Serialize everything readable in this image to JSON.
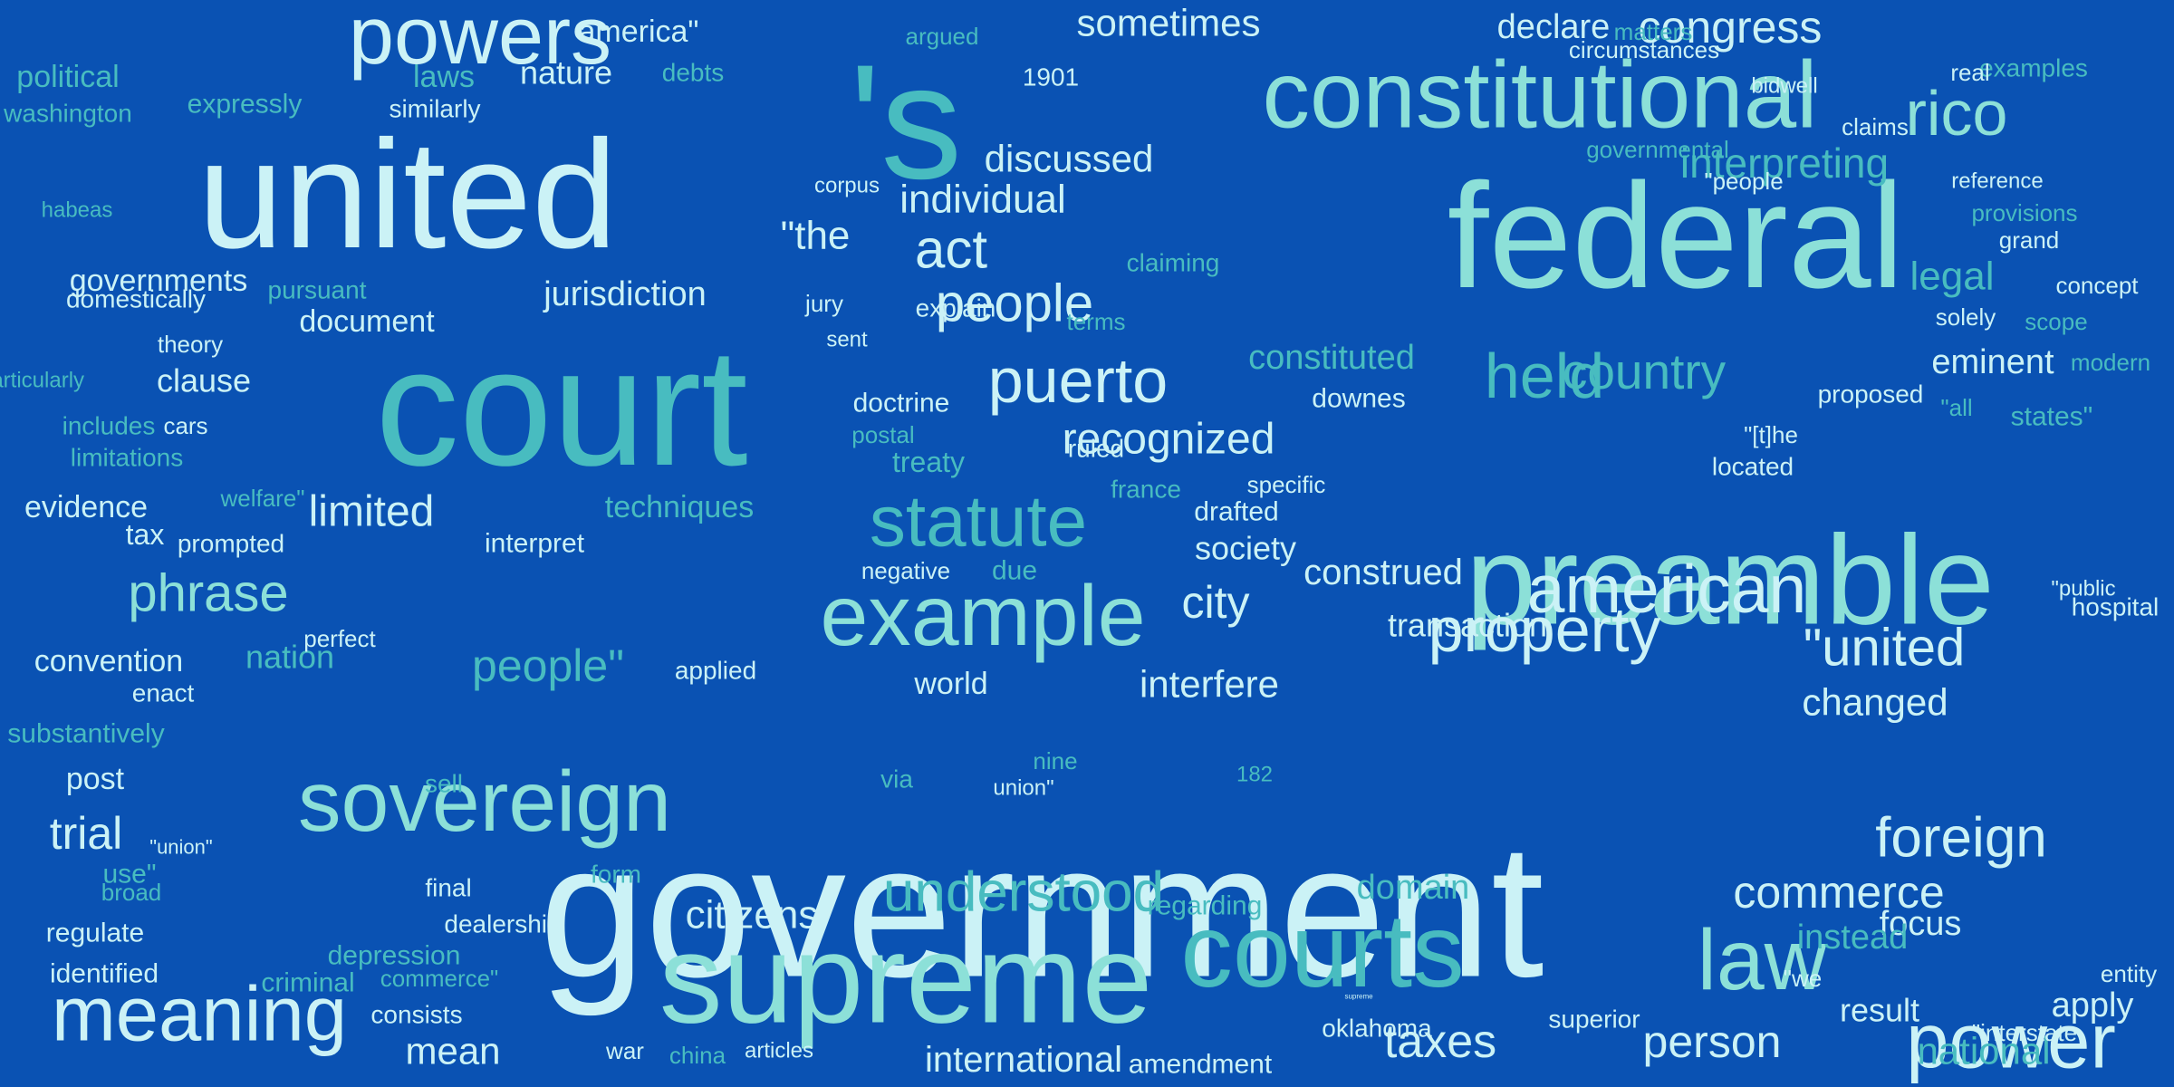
{
  "palette": {
    "background": "#0a52b3",
    "white": "#ffffff",
    "pale": "#cbf2f6",
    "aqua": "#8ce0d8",
    "teal": "#48bcc0",
    "sky": "#7fcfea",
    "faint": "#4fa7d6"
  },
  "words": [
    {
      "text": "government",
      "size": 210,
      "color": "pale"
    },
    {
      "text": "court",
      "size": 185,
      "color": "teal"
    },
    {
      "text": "united",
      "size": 170,
      "color": "pale"
    },
    {
      "text": "federal",
      "size": 165,
      "color": "aqua"
    },
    {
      "text": "'s",
      "size": 180,
      "color": "teal"
    },
    {
      "text": "preamble",
      "size": 140,
      "color": "aqua"
    },
    {
      "text": "supreme",
      "size": 140,
      "color": "aqua"
    },
    {
      "text": "courts",
      "size": 115,
      "color": "teal"
    },
    {
      "text": "constitutional",
      "size": 105,
      "color": "aqua"
    },
    {
      "text": "sovereign",
      "size": 95,
      "color": "aqua"
    },
    {
      "text": "example",
      "size": 95,
      "color": "aqua"
    },
    {
      "text": "powers",
      "size": 90,
      "color": "pale"
    },
    {
      "text": "meaning",
      "size": 85,
      "color": "pale"
    },
    {
      "text": "power",
      "size": 85,
      "color": "pale"
    },
    {
      "text": "law",
      "size": 95,
      "color": "aqua"
    },
    {
      "text": "statute",
      "size": 80,
      "color": "teal"
    },
    {
      "text": "american",
      "size": 75,
      "color": "pale"
    },
    {
      "text": "rico",
      "size": 70,
      "color": "aqua"
    },
    {
      "text": "puerto",
      "size": 70,
      "color": "pale"
    },
    {
      "text": "held",
      "size": 70,
      "color": "teal"
    },
    {
      "text": "property",
      "size": 70,
      "color": "pale"
    },
    {
      "text": "understood",
      "size": 62,
      "color": "teal"
    },
    {
      "text": "foreign",
      "size": 62,
      "color": "pale"
    },
    {
      "text": "people",
      "size": 58,
      "color": "pale"
    },
    {
      "text": "act",
      "size": 60,
      "color": "pale"
    },
    {
      "text": "\"united",
      "size": 58,
      "color": "pale"
    },
    {
      "text": "phrase",
      "size": 58,
      "color": "aqua"
    },
    {
      "text": "commerce",
      "size": 50,
      "color": "pale"
    },
    {
      "text": "country",
      "size": 55,
      "color": "teal"
    },
    {
      "text": "congress",
      "size": 50,
      "color": "pale"
    },
    {
      "text": "taxes",
      "size": 52,
      "color": "pale"
    },
    {
      "text": "person",
      "size": 50,
      "color": "pale"
    },
    {
      "text": "limited",
      "size": 48,
      "color": "pale"
    },
    {
      "text": "people\"",
      "size": 50,
      "color": "teal"
    },
    {
      "text": "trial",
      "size": 50,
      "color": "pale"
    },
    {
      "text": "recognized",
      "size": 48,
      "color": "pale"
    },
    {
      "text": "city",
      "size": 50,
      "color": "pale"
    },
    {
      "text": "citizens",
      "size": 44,
      "color": "pale"
    },
    {
      "text": "interfere",
      "size": 42,
      "color": "pale"
    },
    {
      "text": "construed",
      "size": 40,
      "color": "pale"
    },
    {
      "text": "interpreting",
      "size": 46,
      "color": "teal"
    },
    {
      "text": "individual",
      "size": 44,
      "color": "pale"
    },
    {
      "text": "discussed",
      "size": 42,
      "color": "pale"
    },
    {
      "text": "\"the",
      "size": 44,
      "color": "pale"
    },
    {
      "text": "sometimes",
      "size": 42,
      "color": "pale"
    },
    {
      "text": "declare",
      "size": 38,
      "color": "pale"
    },
    {
      "text": "international",
      "size": 40,
      "color": "pale"
    },
    {
      "text": "national",
      "size": 42,
      "color": "teal"
    },
    {
      "text": "changed",
      "size": 42,
      "color": "pale"
    },
    {
      "text": "legal",
      "size": 44,
      "color": "teal"
    },
    {
      "text": "eminent",
      "size": 38,
      "color": "pale"
    },
    {
      "text": "mean",
      "size": 42,
      "color": "pale"
    },
    {
      "text": "supreme",
      "size": 8,
      "color": "pale"
    },
    {
      "text": "jurisdiction",
      "size": 38,
      "color": "pale"
    },
    {
      "text": "constituted",
      "size": 38,
      "color": "teal"
    },
    {
      "text": "domain",
      "size": 38,
      "color": "teal"
    },
    {
      "text": "transaction",
      "size": 36,
      "color": "pale"
    },
    {
      "text": "society",
      "size": 36,
      "color": "pale"
    },
    {
      "text": "focus",
      "size": 38,
      "color": "pale"
    },
    {
      "text": "instead",
      "size": 38,
      "color": "teal"
    },
    {
      "text": "apply",
      "size": 38,
      "color": "pale"
    },
    {
      "text": "result",
      "size": 36,
      "color": "pale"
    },
    {
      "text": "nature",
      "size": 36,
      "color": "pale"
    },
    {
      "text": "evidence",
      "size": 34,
      "color": "pale"
    },
    {
      "text": "convention",
      "size": 34,
      "color": "pale"
    },
    {
      "text": "clause",
      "size": 36,
      "color": "pale"
    },
    {
      "text": "america\"",
      "size": 34,
      "color": "pale"
    },
    {
      "text": "document",
      "size": 34,
      "color": "pale"
    },
    {
      "text": "governments",
      "size": 34,
      "color": "pale"
    },
    {
      "text": "political",
      "size": 34,
      "color": "teal"
    },
    {
      "text": "substantively",
      "size": 30,
      "color": "teal"
    },
    {
      "text": "post",
      "size": 34,
      "color": "pale"
    },
    {
      "text": "identified",
      "size": 30,
      "color": "pale"
    },
    {
      "text": "regulate",
      "size": 30,
      "color": "pale"
    },
    {
      "text": "criminal",
      "size": 30,
      "color": "teal"
    },
    {
      "text": "dealership",
      "size": 28,
      "color": "pale"
    },
    {
      "text": "depression",
      "size": 30,
      "color": "teal"
    },
    {
      "text": "consists",
      "size": 28,
      "color": "pale"
    },
    {
      "text": "regarding",
      "size": 30,
      "color": "teal"
    },
    {
      "text": "amendment",
      "size": 30,
      "color": "pale"
    },
    {
      "text": "oklahoma",
      "size": 28,
      "color": "pale"
    },
    {
      "text": "superior",
      "size": 28,
      "color": "pale"
    },
    {
      "text": "doctrine",
      "size": 30,
      "color": "pale"
    },
    {
      "text": "treaty",
      "size": 32,
      "color": "teal"
    },
    {
      "text": "ruled",
      "size": 28,
      "color": "pale"
    },
    {
      "text": "techniques",
      "size": 34,
      "color": "teal"
    },
    {
      "text": "interpret",
      "size": 30,
      "color": "pale"
    },
    {
      "text": "applied",
      "size": 28,
      "color": "pale"
    },
    {
      "text": "world",
      "size": 34,
      "color": "pale"
    },
    {
      "text": "drafted",
      "size": 30,
      "color": "pale"
    },
    {
      "text": "france",
      "size": 28,
      "color": "teal"
    },
    {
      "text": "due",
      "size": 30,
      "color": "teal"
    },
    {
      "text": "negative",
      "size": 26,
      "color": "pale"
    },
    {
      "text": "tax",
      "size": 32,
      "color": "pale"
    },
    {
      "text": "prompted",
      "size": 28,
      "color": "pale"
    },
    {
      "text": "welfare\"",
      "size": 26,
      "color": "teal"
    },
    {
      "text": "nation",
      "size": 36,
      "color": "teal"
    },
    {
      "text": "perfect",
      "size": 26,
      "color": "pale"
    },
    {
      "text": "includes",
      "size": 28,
      "color": "teal"
    },
    {
      "text": "enact",
      "size": 28,
      "color": "pale"
    },
    {
      "text": "nine",
      "size": 26,
      "color": "teal"
    },
    {
      "text": "limitations",
      "size": 28,
      "color": "teal"
    },
    {
      "text": "cars",
      "size": 26,
      "color": "pale"
    },
    {
      "text": "theory",
      "size": 26,
      "color": "pale"
    },
    {
      "text": "domestically",
      "size": 28,
      "color": "pale"
    },
    {
      "text": "pursuant",
      "size": 28,
      "color": "teal"
    },
    {
      "text": "expressly",
      "size": 30,
      "color": "teal"
    },
    {
      "text": "washington",
      "size": 28,
      "color": "teal"
    },
    {
      "text": "similarly",
      "size": 28,
      "color": "pale"
    },
    {
      "text": "laws",
      "size": 34,
      "color": "teal"
    },
    {
      "text": "debts",
      "size": 28,
      "color": "teal"
    },
    {
      "text": "argued",
      "size": 26,
      "color": "teal"
    },
    {
      "text": "1901",
      "size": 28,
      "color": "pale"
    },
    {
      "text": "claiming",
      "size": 28,
      "color": "teal"
    },
    {
      "text": "explain",
      "size": 28,
      "color": "pale"
    },
    {
      "text": "downes",
      "size": 30,
      "color": "pale"
    },
    {
      "text": "located",
      "size": 28,
      "color": "pale"
    },
    {
      "text": "\"[t]he",
      "size": 26,
      "color": "pale"
    },
    {
      "text": "proposed",
      "size": 28,
      "color": "pale"
    },
    {
      "text": "\"all",
      "size": 26,
      "color": "teal"
    },
    {
      "text": "states\"",
      "size": 30,
      "color": "teal"
    },
    {
      "text": "hospital",
      "size": 28,
      "color": "pale"
    },
    {
      "text": "modern",
      "size": 26,
      "color": "teal"
    },
    {
      "text": "\"public",
      "size": 24,
      "color": "pale"
    },
    {
      "text": "entity",
      "size": 26,
      "color": "pale"
    },
    {
      "text": "\"interstate",
      "size": 26,
      "color": "pale"
    },
    {
      "text": "\"we",
      "size": 26,
      "color": "pale"
    },
    {
      "text": "articles",
      "size": 24,
      "color": "pale"
    },
    {
      "text": "china",
      "size": 26,
      "color": "teal"
    },
    {
      "text": "war",
      "size": 26,
      "color": "pale"
    },
    {
      "text": "commerce\"",
      "size": 26,
      "color": "teal"
    },
    {
      "text": "broad",
      "size": 26,
      "color": "teal"
    },
    {
      "text": "\"union\"",
      "size": 22,
      "color": "pale"
    },
    {
      "text": "use\"",
      "size": 30,
      "color": "teal"
    },
    {
      "text": "form",
      "size": 28,
      "color": "teal"
    },
    {
      "text": "final",
      "size": 28,
      "color": "pale"
    },
    {
      "text": "sell",
      "size": 28,
      "color": "teal"
    },
    {
      "text": "182",
      "size": 24,
      "color": "teal"
    },
    {
      "text": "via",
      "size": 28,
      "color": "teal"
    },
    {
      "text": "union\"",
      "size": 24,
      "color": "pale"
    },
    {
      "text": "specific",
      "size": 26,
      "color": "pale"
    },
    {
      "text": "reference",
      "size": 24,
      "color": "pale"
    },
    {
      "text": "provisions",
      "size": 26,
      "color": "teal"
    },
    {
      "text": "grand",
      "size": 26,
      "color": "pale"
    },
    {
      "text": "concept",
      "size": 26,
      "color": "pale"
    },
    {
      "text": "scope",
      "size": 26,
      "color": "teal"
    },
    {
      "text": "solely",
      "size": 26,
      "color": "pale"
    },
    {
      "text": "circumstances",
      "size": 26,
      "color": "pale"
    },
    {
      "text": "matters",
      "size": 26,
      "color": "teal"
    },
    {
      "text": "examples",
      "size": 28,
      "color": "teal"
    },
    {
      "text": "real",
      "size": 26,
      "color": "pale"
    },
    {
      "text": "bidwell",
      "size": 24,
      "color": "pale"
    },
    {
      "text": "claims",
      "size": 26,
      "color": "pale"
    },
    {
      "text": "governmental",
      "size": 26,
      "color": "teal"
    },
    {
      "text": "\"people",
      "size": 26,
      "color": "pale"
    },
    {
      "text": "corpus",
      "size": 24,
      "color": "pale"
    },
    {
      "text": "terms",
      "size": 26,
      "color": "teal"
    },
    {
      "text": "jury",
      "size": 26,
      "color": "pale"
    },
    {
      "text": "sent",
      "size": 24,
      "color": "pale"
    },
    {
      "text": "postal",
      "size": 26,
      "color": "teal"
    },
    {
      "text": "habeas",
      "size": 24,
      "color": "teal"
    },
    {
      "text": "particularly",
      "size": 24,
      "color": "teal"
    }
  ]
}
